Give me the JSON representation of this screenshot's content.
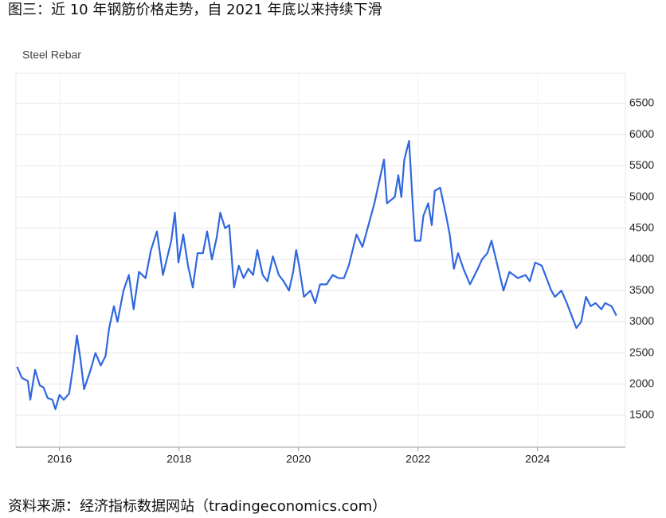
{
  "chart_data": {
    "type": "line",
    "title": "图三：近 10 年钢筋价格走势，自 2021 年底以来持续下滑",
    "source": "资料来源：经济指标数据网站（tradingeconomics.com）",
    "x": [
      2015.29,
      2015.37,
      2015.47,
      2015.51,
      2015.59,
      2015.67,
      2015.73,
      2015.8,
      2015.88,
      2015.93,
      2016.0,
      2016.07,
      2016.16,
      2016.23,
      2016.29,
      2016.35,
      2016.41,
      2016.51,
      2016.6,
      2016.69,
      2016.77,
      2016.83,
      2016.91,
      2016.97,
      2017.07,
      2017.16,
      2017.24,
      2017.33,
      2017.44,
      2017.53,
      2017.63,
      2017.73,
      2017.87,
      2017.93,
      2017.99,
      2018.07,
      2018.15,
      2018.23,
      2018.31,
      2018.4,
      2018.47,
      2018.55,
      2018.63,
      2018.69,
      2018.77,
      2018.84,
      2018.92,
      2019.0,
      2019.08,
      2019.16,
      2019.24,
      2019.31,
      2019.4,
      2019.48,
      2019.57,
      2019.67,
      2019.75,
      2019.84,
      2019.91,
      2019.96,
      2020.01,
      2020.09,
      2020.2,
      2020.28,
      2020.36,
      2020.47,
      2020.57,
      2020.67,
      2020.76,
      2020.84,
      2020.97,
      2021.07,
      2021.27,
      2021.43,
      2021.48,
      2021.61,
      2021.67,
      2021.72,
      2021.77,
      2021.85,
      2021.91,
      2021.95,
      2022.04,
      2022.09,
      2022.17,
      2022.23,
      2022.28,
      2022.37,
      2022.47,
      2022.53,
      2022.6,
      2022.67,
      2022.76,
      2022.87,
      2023.0,
      2023.07,
      2023.16,
      2023.23,
      2023.33,
      2023.43,
      2023.53,
      2023.67,
      2023.8,
      2023.87,
      2023.96,
      2024.07,
      2024.15,
      2024.23,
      2024.29,
      2024.4,
      2024.49,
      2024.57,
      2024.65,
      2024.73,
      2024.81,
      2024.89,
      2024.97,
      2025.07,
      2025.13,
      2025.24,
      2025.32
    ],
    "series": [
      {
        "name": "Steel Rebar",
        "color": "#2f67e0",
        "values": [
          2280,
          2100,
          2050,
          1750,
          2230,
          1980,
          1950,
          1780,
          1750,
          1600,
          1830,
          1750,
          1850,
          2300,
          2780,
          2400,
          1920,
          2200,
          2500,
          2300,
          2450,
          2900,
          3250,
          3000,
          3500,
          3750,
          3200,
          3800,
          3700,
          4150,
          4450,
          3750,
          4300,
          4750,
          3950,
          4400,
          3900,
          3550,
          4100,
          4100,
          4450,
          4000,
          4350,
          4750,
          4500,
          4550,
          3550,
          3900,
          3700,
          3850,
          3750,
          4150,
          3750,
          3650,
          4050,
          3750,
          3650,
          3500,
          3800,
          4150,
          3900,
          3400,
          3500,
          3300,
          3600,
          3600,
          3750,
          3700,
          3700,
          3900,
          4400,
          4200,
          4900,
          5600,
          4900,
          5000,
          5350,
          5000,
          5600,
          5900,
          4900,
          4300,
          4300,
          4700,
          4900,
          4550,
          5100,
          5150,
          4700,
          4400,
          3850,
          4100,
          3850,
          3600,
          3850,
          4000,
          4100,
          4300,
          3900,
          3500,
          3800,
          3700,
          3750,
          3650,
          3950,
          3900,
          3700,
          3500,
          3400,
          3500,
          3300,
          3100,
          2900,
          3000,
          3400,
          3250,
          3300,
          3200,
          3300,
          3250,
          3100
        ]
      }
    ],
    "xlim": [
      2015.27,
      2025.47
    ],
    "xticks": [
      2016,
      2018,
      2020,
      2022,
      2024
    ],
    "ylim": [
      990,
      6985
    ],
    "yticks": [
      1500,
      2000,
      2500,
      3000,
      3500,
      4000,
      4500,
      5000,
      5500,
      6000,
      6500
    ],
    "grid": true
  }
}
